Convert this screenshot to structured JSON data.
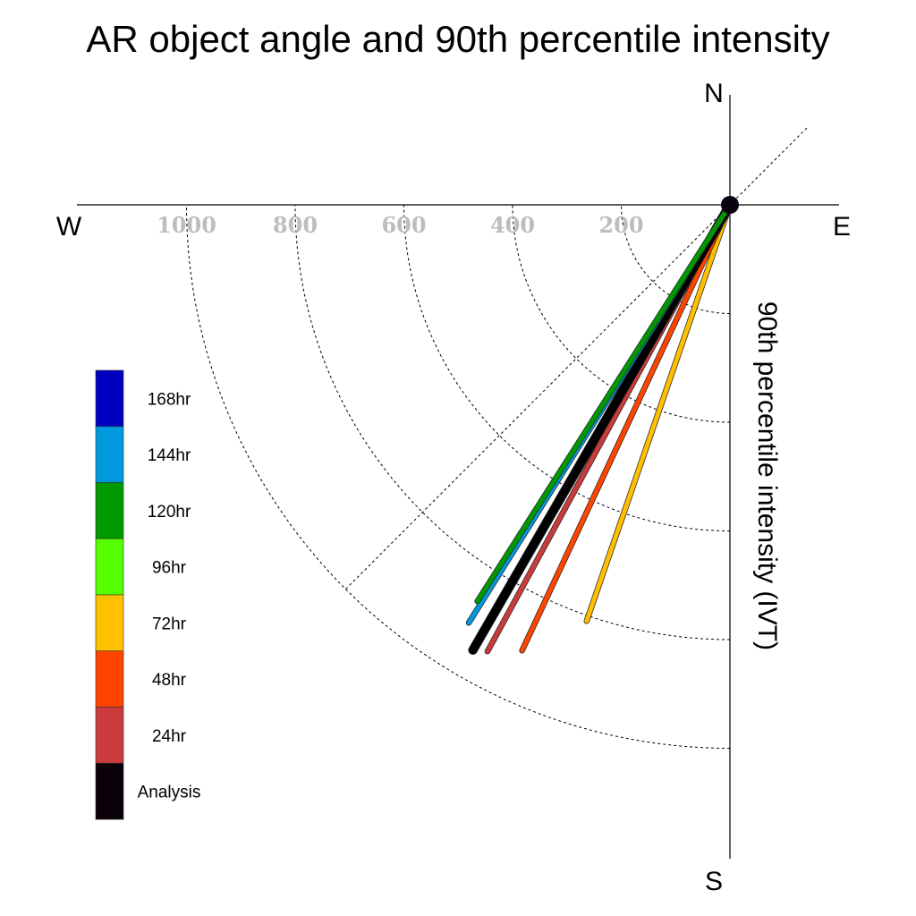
{
  "chart_data": {
    "type": "polar-quadrant",
    "title": "AR object angle and 90th percentile intensity",
    "ylabel": "90th percentile intensity (IVT)",
    "compass": {
      "north": "N",
      "south": "S",
      "east": "E",
      "west": "W"
    },
    "radial_range": [
      0,
      1200
    ],
    "rings": [
      200,
      400,
      600,
      800,
      1000
    ],
    "tick_labels": [
      "1000",
      "800",
      "600",
      "400",
      "200"
    ],
    "tick_values": [
      1000,
      800,
      600,
      400,
      200
    ],
    "diagonal_guide": true,
    "series": [
      {
        "name": "72hr",
        "color": "#ffc000",
        "angle_deg": 199,
        "intensity": 810
      },
      {
        "name": "48hr",
        "color": "#ff4400",
        "angle_deg": 205,
        "intensity": 905
      },
      {
        "name": "24hr",
        "color": "#cc3b3b",
        "angle_deg": 208.5,
        "intensity": 935
      },
      {
        "name": "Analysis",
        "color": "#000000",
        "angle_deg": 210,
        "intensity": 946
      },
      {
        "name": "144hr",
        "color": "#0099dd",
        "angle_deg": 212,
        "intensity": 907
      },
      {
        "name": "120hr",
        "color": "#009900",
        "angle_deg": 212.5,
        "intensity": 865
      }
    ],
    "legend": [
      {
        "label": "168hr",
        "color": "#0000c0"
      },
      {
        "label": "144hr",
        "color": "#0099dd"
      },
      {
        "label": "120hr",
        "color": "#009900"
      },
      {
        "label": "96hr",
        "color": "#55ff00"
      },
      {
        "label": "72hr",
        "color": "#ffc000"
      },
      {
        "label": "48hr",
        "color": "#ff4400"
      },
      {
        "label": "24hr",
        "color": "#cc3b3b"
      },
      {
        "label": "Analysis",
        "color": "#0a0008"
      }
    ]
  }
}
